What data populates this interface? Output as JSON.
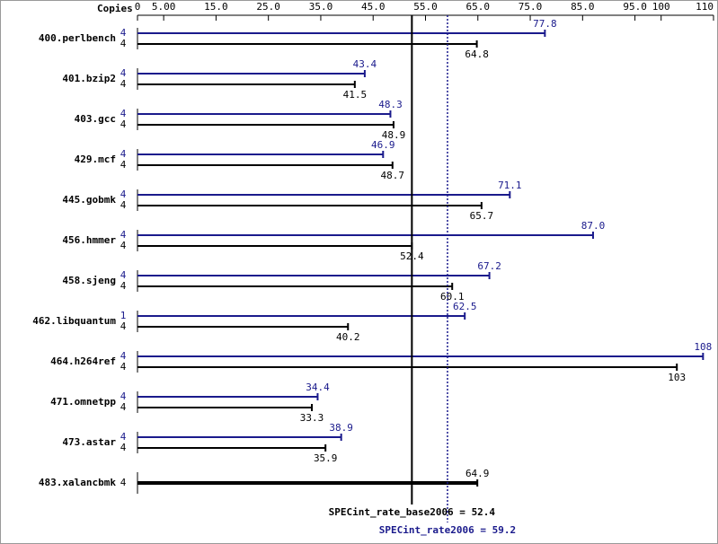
{
  "chart_data": {
    "type": "bar",
    "copies_label": "Copies",
    "categories": [
      "400.perlbench",
      "401.bzip2",
      "403.gcc",
      "429.mcf",
      "445.gobmk",
      "456.hmmer",
      "458.sjeng",
      "462.libquantum",
      "464.h264ref",
      "471.omnetpp",
      "473.astar",
      "483.xalancbmk"
    ],
    "series": [
      {
        "color": "#1a1a8c",
        "copies": [
          4,
          4,
          4,
          4,
          4,
          4,
          4,
          1,
          4,
          4,
          4,
          null
        ],
        "values": [
          77.8,
          43.4,
          48.3,
          46.9,
          71.1,
          87.0,
          67.2,
          62.5,
          108,
          34.4,
          38.9,
          null
        ],
        "value_labels": [
          "77.8",
          "43.4",
          "48.3",
          "46.9",
          "71.1",
          "87.0",
          "67.2",
          "62.5",
          "108",
          "34.4",
          "38.9",
          null
        ]
      },
      {
        "color": "#000000",
        "copies": [
          4,
          4,
          4,
          4,
          4,
          4,
          4,
          4,
          4,
          4,
          4,
          4
        ],
        "values": [
          64.8,
          41.5,
          48.9,
          48.7,
          65.7,
          52.4,
          60.1,
          40.2,
          103,
          33.3,
          35.9,
          64.9
        ],
        "value_labels": [
          "64.8",
          "41.5",
          "48.9",
          "48.7",
          "65.7",
          "52.4",
          "60.1",
          "40.2",
          "103",
          "33.3",
          "35.9",
          "64.9"
        ]
      }
    ],
    "xlim": [
      0,
      110
    ],
    "xticks": [
      0,
      {
        "value": 5,
        "label": "5.00"
      },
      {
        "value": 15,
        "label": "15.0"
      },
      {
        "value": 25,
        "label": "25.0"
      },
      {
        "value": 35,
        "label": "35.0"
      },
      {
        "value": 45,
        "label": "45.0"
      },
      {
        "value": 55,
        "label": "55.0"
      },
      {
        "value": 65,
        "label": "65.0"
      },
      {
        "value": 75,
        "label": "75.0"
      },
      {
        "value": 85,
        "label": "85.0"
      },
      {
        "value": 95,
        "label": "95.0"
      },
      100,
      110
    ],
    "reference_lines": [
      {
        "label": "SPECint_rate_base2006 =",
        "value": 52.4,
        "value_label": "52.4",
        "color": "#000000",
        "dotted": false
      },
      {
        "label": "SPECint_rate2006 =",
        "value": 59.2,
        "value_label": "59.2",
        "color": "#1a1a8c",
        "dotted": true
      }
    ]
  }
}
